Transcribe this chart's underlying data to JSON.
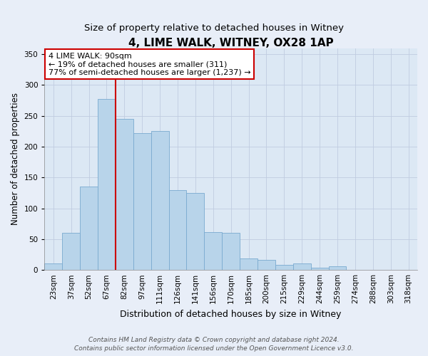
{
  "title": "4, LIME WALK, WITNEY, OX28 1AP",
  "subtitle": "Size of property relative to detached houses in Witney",
  "xlabel": "Distribution of detached houses by size in Witney",
  "ylabel": "Number of detached properties",
  "bar_labels": [
    "23sqm",
    "37sqm",
    "52sqm",
    "67sqm",
    "82sqm",
    "97sqm",
    "111sqm",
    "126sqm",
    "141sqm",
    "156sqm",
    "170sqm",
    "185sqm",
    "200sqm",
    "215sqm",
    "229sqm",
    "244sqm",
    "259sqm",
    "274sqm",
    "288sqm",
    "303sqm",
    "318sqm"
  ],
  "bar_values": [
    11,
    60,
    135,
    277,
    245,
    222,
    225,
    130,
    125,
    62,
    60,
    19,
    16,
    8,
    11,
    4,
    6,
    0,
    0,
    0,
    0
  ],
  "bar_color": "#b8d4ea",
  "bar_edge_color": "#7aaad0",
  "vline_x_index": 4,
  "vline_color": "#cc0000",
  "annotation_line1": "4 LIME WALK: 90sqm",
  "annotation_line2": "← 19% of detached houses are smaller (311)",
  "annotation_line3": "77% of semi-detached houses are larger (1,237) →",
  "annotation_box_color": "#ffffff",
  "annotation_box_edge": "#cc0000",
  "ylim": [
    0,
    360
  ],
  "yticks": [
    0,
    50,
    100,
    150,
    200,
    250,
    300,
    350
  ],
  "footnote1": "Contains HM Land Registry data © Crown copyright and database right 2024.",
  "footnote2": "Contains public sector information licensed under the Open Government Licence v3.0.",
  "background_color": "#e8eef8",
  "plot_bg_color": "#dce8f4",
  "title_fontsize": 11,
  "subtitle_fontsize": 9.5,
  "xlabel_fontsize": 9,
  "ylabel_fontsize": 8.5,
  "tick_fontsize": 7.5,
  "annotation_fontsize": 8,
  "footnote_fontsize": 6.5
}
